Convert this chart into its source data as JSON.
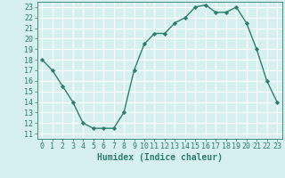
{
  "x": [
    0,
    1,
    2,
    3,
    4,
    5,
    6,
    7,
    8,
    9,
    10,
    11,
    12,
    13,
    14,
    15,
    16,
    17,
    18,
    19,
    20,
    21,
    22,
    23
  ],
  "y": [
    18,
    17,
    15.5,
    14,
    12,
    11.5,
    11.5,
    11.5,
    13,
    17,
    19.5,
    20.5,
    20.5,
    21.5,
    22,
    23,
    23.2,
    22.5,
    22.5,
    23,
    21.5,
    19,
    16,
    14
  ],
  "line_color": "#2e7d6e",
  "marker": "D",
  "markersize": 2.2,
  "linewidth": 1.0,
  "xlabel": "Humidex (Indice chaleur)",
  "xlim": [
    -0.5,
    23.5
  ],
  "ylim": [
    10.5,
    23.5
  ],
  "yticks": [
    11,
    12,
    13,
    14,
    15,
    16,
    17,
    18,
    19,
    20,
    21,
    22,
    23
  ],
  "xticks": [
    0,
    1,
    2,
    3,
    4,
    5,
    6,
    7,
    8,
    9,
    10,
    11,
    12,
    13,
    14,
    15,
    16,
    17,
    18,
    19,
    20,
    21,
    22,
    23
  ],
  "bg_color": "#d6f0ef",
  "grid_color": "#ffffff",
  "fg_color": "#2e7d6e",
  "xlabel_fontsize": 7,
  "tick_fontsize": 6
}
